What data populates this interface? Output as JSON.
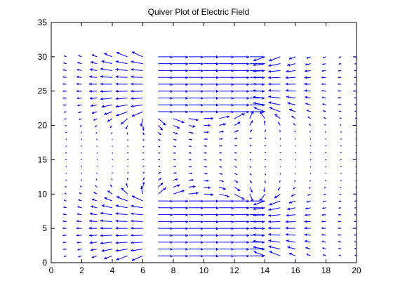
{
  "chart_data": {
    "type": "quiver",
    "title": "Quiver Plot of Electric Field",
    "xlabel": "",
    "ylabel": "",
    "xlim": [
      0,
      20
    ],
    "ylim": [
      0,
      35
    ],
    "xticks": [
      "0",
      "2",
      "4",
      "6",
      "8",
      "10",
      "12",
      "14",
      "16",
      "18",
      "20"
    ],
    "yticks": [
      "0",
      "5",
      "10",
      "15",
      "20",
      "25",
      "30",
      "35"
    ],
    "grid": false,
    "legend": "none",
    "arrow_color": "#0000ff",
    "field": {
      "description": "Sampled field on grid x=1..20 step 1, y=1..30 step 1; strong field between plates x=7..13 for y<=9 and y>=22, fringing elsewhere",
      "x_range": [
        1,
        20
      ],
      "y_range": [
        1,
        30
      ],
      "step": 1,
      "plates": [
        {
          "x": [
            6.3,
            13.2
          ],
          "y_from": 1,
          "y_to": 9
        },
        {
          "x": [
            6.3,
            13.2
          ],
          "y_from": 22,
          "y_to": 30
        }
      ]
    }
  }
}
